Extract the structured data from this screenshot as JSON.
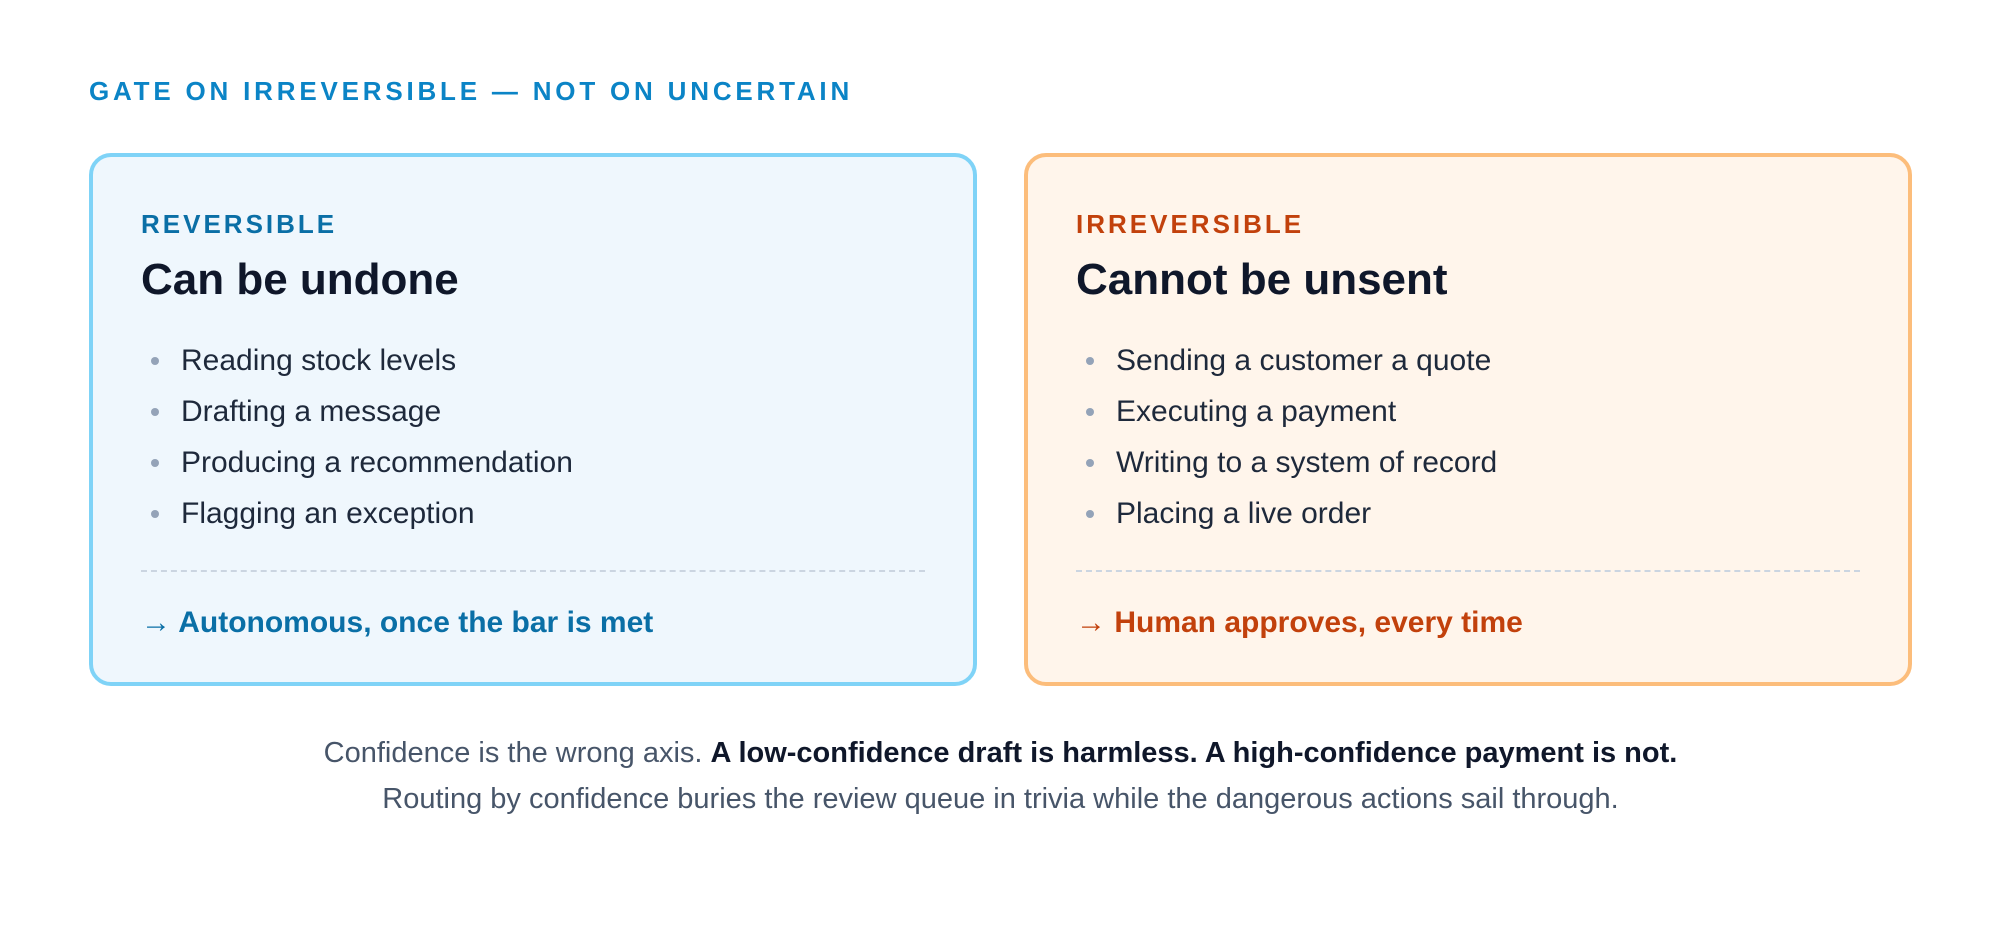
{
  "eyebrow": "GATE ON IRREVERSIBLE — NOT ON UNCERTAIN",
  "cards": [
    {
      "kicker": "REVERSIBLE",
      "title": "Can be undone",
      "items": [
        "Reading stock levels",
        "Drafting a message",
        "Producing a recommendation",
        "Flagging an exception"
      ],
      "verdict": "→ Autonomous, once the bar is met",
      "accent_color": "#0a6fa6",
      "border_color": "#7fd3f7",
      "background_color": "#eff7fd"
    },
    {
      "kicker": "IRREVERSIBLE",
      "title": "Cannot be unsent",
      "items": [
        "Sending a customer a quote",
        "Executing a payment",
        "Writing to a system of record",
        "Placing a live order"
      ],
      "verdict": "→ Human approves, every time",
      "accent_color": "#c2410c",
      "border_color": "#fcbd7b",
      "background_color": "#fff5eb"
    }
  ],
  "caption": {
    "line1_plain": "Confidence is the wrong axis. ",
    "line1_bold": "A low-confidence draft is harmless. A high-confidence payment is not.",
    "line2": "Routing by confidence buries the review queue in trivia while the dangerous actions sail through."
  },
  "colors": {
    "eyebrow": "#0b84c6",
    "body_text": "#1e293b",
    "muted_text": "#475569",
    "heading": "#0f172a"
  }
}
